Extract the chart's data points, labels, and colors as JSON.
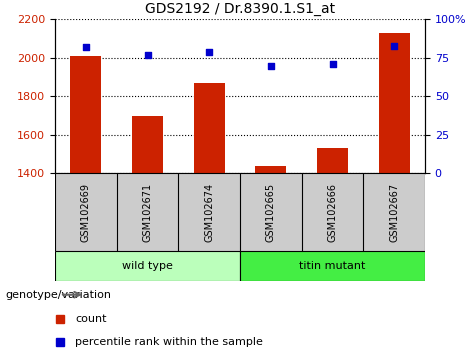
{
  "title": "GDS2192 / Dr.8390.1.S1_at",
  "samples": [
    "GSM102669",
    "GSM102671",
    "GSM102674",
    "GSM102665",
    "GSM102666",
    "GSM102667"
  ],
  "counts": [
    2010,
    1700,
    1870,
    1440,
    1530,
    2130
  ],
  "percentiles": [
    82,
    77,
    79,
    70,
    71,
    83
  ],
  "ylim_left": [
    1400,
    2200
  ],
  "ylim_right": [
    0,
    100
  ],
  "yticks_left": [
    1400,
    1600,
    1800,
    2000,
    2200
  ],
  "yticks_right": [
    0,
    25,
    50,
    75,
    100
  ],
  "ytick_labels_right": [
    "0",
    "25",
    "50",
    "75",
    "100%"
  ],
  "bar_color": "#cc2200",
  "dot_color": "#0000cc",
  "grid_color": "#000000",
  "groups": [
    {
      "label": "wild type",
      "indices": [
        0,
        1,
        2
      ],
      "color": "#bbffbb"
    },
    {
      "label": "titin mutant",
      "indices": [
        3,
        4,
        5
      ],
      "color": "#44ee44"
    }
  ],
  "group_label": "genotype/variation",
  "legend_count_label": "count",
  "legend_pct_label": "percentile rank within the sample",
  "bar_width": 0.5,
  "bg_color": "#ffffff",
  "plot_bg_color": "#ffffff",
  "tick_label_color_left": "#cc2200",
  "tick_label_color_right": "#0000cc",
  "sample_box_color": "#cccccc",
  "sample_box_border": "#888888"
}
